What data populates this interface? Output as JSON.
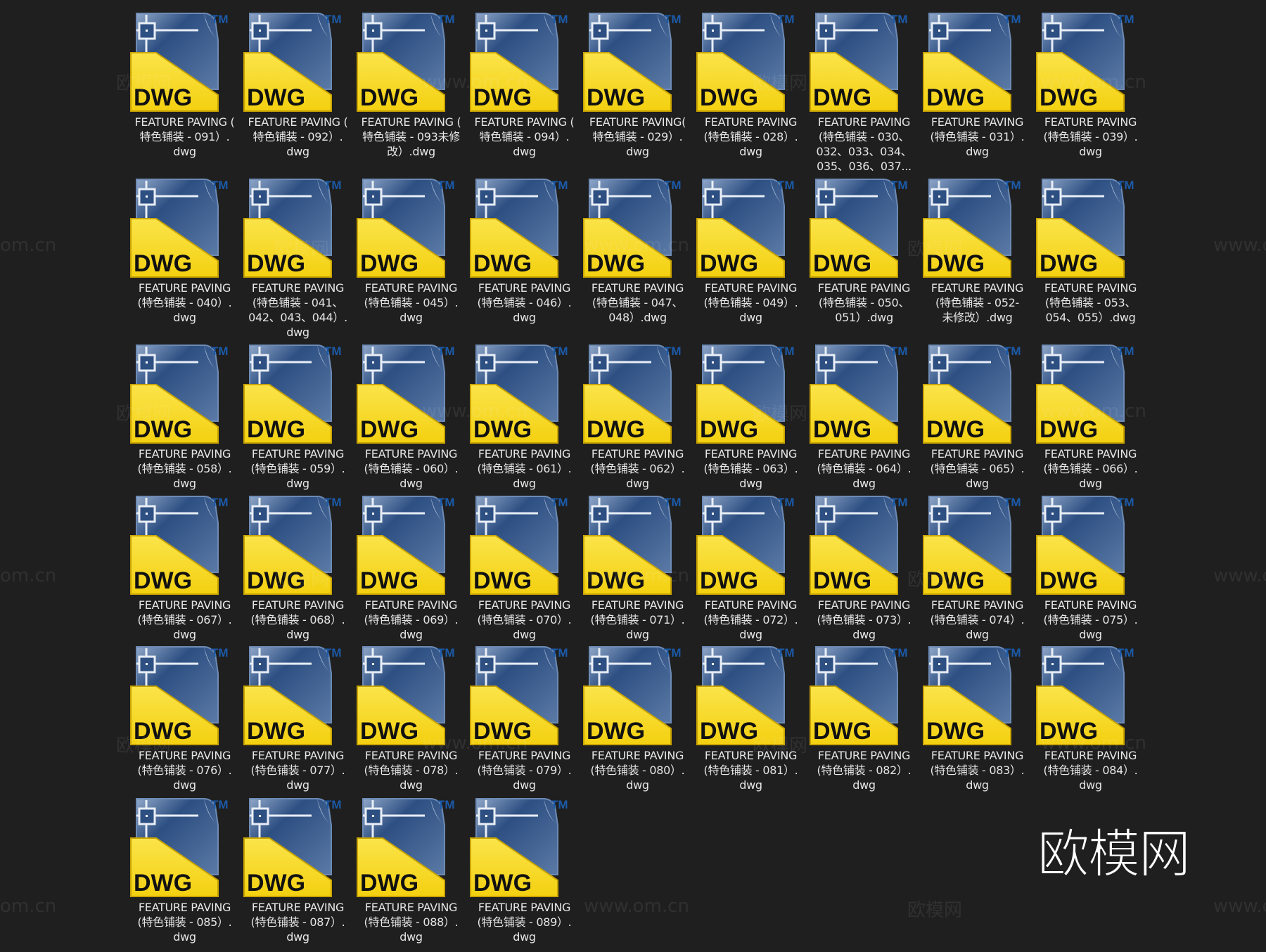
{
  "icon": {
    "type": "dwg-file-icon",
    "badge": "DWG",
    "trademark": "TM",
    "colors": {
      "blue": "#2d4f82",
      "yellow": "#f3d010",
      "tm": "#1b5aa8"
    }
  },
  "files": [
    {
      "name": "FEATURE PAVING (\n特色铺装 - 091）.\ndwg"
    },
    {
      "name": "FEATURE PAVING (\n特色铺装 - 092）.\ndwg"
    },
    {
      "name": "FEATURE PAVING (\n特色铺装 - 093未修\n改）.dwg"
    },
    {
      "name": "FEATURE PAVING (\n特色铺装 - 094）.\ndwg"
    },
    {
      "name": "FEATURE PAVING(\n特色铺装 - 029）.\ndwg"
    },
    {
      "name": "FEATURE PAVING\n(特色铺装 - 028）.\ndwg"
    },
    {
      "name": "FEATURE PAVING\n(特色铺装 - 030、\n032、033、034、\n035、036、037..."
    },
    {
      "name": "FEATURE PAVING\n(特色铺装 - 031）.\ndwg"
    },
    {
      "name": "FEATURE PAVING\n(特色铺装 - 039）.\ndwg"
    },
    {
      "name": "FEATURE PAVING\n(特色铺装 - 040）.\ndwg"
    },
    {
      "name": "FEATURE PAVING\n(特色铺装 - 041、\n042、043、044）.\ndwg"
    },
    {
      "name": "FEATURE PAVING\n(特色铺装 - 045）.\ndwg"
    },
    {
      "name": "FEATURE PAVING\n(特色铺装 - 046）.\ndwg"
    },
    {
      "name": "FEATURE PAVING\n(特色铺装 - 047、\n048）.dwg"
    },
    {
      "name": "FEATURE PAVING\n(特色铺装 - 049）.\ndwg"
    },
    {
      "name": "FEATURE PAVING\n(特色铺装 - 050、\n051）.dwg"
    },
    {
      "name": "FEATURE PAVING\n(特色铺装 - 052-\n未修改）.dwg"
    },
    {
      "name": "FEATURE PAVING\n(特色铺装 - 053、\n054、055）.dwg"
    },
    {
      "name": "FEATURE PAVING\n(特色铺装 - 058）.\ndwg"
    },
    {
      "name": "FEATURE PAVING\n(特色铺装 - 059）.\ndwg"
    },
    {
      "name": "FEATURE PAVING\n(特色铺装 - 060）.\ndwg"
    },
    {
      "name": "FEATURE PAVING\n(特色铺装 - 061）.\ndwg"
    },
    {
      "name": "FEATURE PAVING\n(特色铺装 - 062）.\ndwg"
    },
    {
      "name": "FEATURE PAVING\n(特色铺装 - 063）.\ndwg"
    },
    {
      "name": "FEATURE PAVING\n(特色铺装 - 064）.\ndwg"
    },
    {
      "name": "FEATURE PAVING\n(特色铺装 - 065）.\ndwg"
    },
    {
      "name": "FEATURE PAVING\n(特色铺装 - 066）.\ndwg"
    },
    {
      "name": "FEATURE PAVING\n(特色铺装 - 067）.\ndwg"
    },
    {
      "name": "FEATURE PAVING\n(特色铺装 - 068）.\ndwg"
    },
    {
      "name": "FEATURE PAVING\n(特色铺装 - 069）.\ndwg"
    },
    {
      "name": "FEATURE PAVING\n(特色铺装 - 070）.\ndwg"
    },
    {
      "name": "FEATURE PAVING\n(特色铺装 - 071）.\ndwg"
    },
    {
      "name": "FEATURE PAVING\n(特色铺装 - 072）.\ndwg"
    },
    {
      "name": "FEATURE PAVING\n(特色铺装 - 073）.\ndwg"
    },
    {
      "name": "FEATURE PAVING\n(特色铺装 - 074）.\ndwg"
    },
    {
      "name": "FEATURE PAVING\n(特色铺装 - 075）.\ndwg"
    },
    {
      "name": "FEATURE PAVING\n(特色铺装 - 076）.\ndwg"
    },
    {
      "name": "FEATURE PAVING\n(特色铺装 - 077）.\ndwg"
    },
    {
      "name": "FEATURE PAVING\n(特色铺装 - 078）.\ndwg"
    },
    {
      "name": "FEATURE PAVING\n(特色铺装 - 079）.\ndwg"
    },
    {
      "name": "FEATURE PAVING\n(特色铺装 - 080）.\ndwg"
    },
    {
      "name": "FEATURE PAVING\n(特色铺装 - 081）.\ndwg"
    },
    {
      "name": "FEATURE PAVING\n(特色铺装 - 082）.\ndwg"
    },
    {
      "name": "FEATURE PAVING\n(特色铺装 - 083）.\ndwg"
    },
    {
      "name": "FEATURE PAVING\n(特色铺装 - 084）.\ndwg"
    },
    {
      "name": "FEATURE PAVING\n(特色铺装 - 085）.\ndwg"
    },
    {
      "name": "FEATURE PAVING\n(特色铺装 - 087）.\ndwg"
    },
    {
      "name": "FEATURE PAVING\n(特色铺装 - 088）.\ndwg"
    },
    {
      "name": "FEATURE PAVING\n(特色铺装 - 089）.\ndwg"
    }
  ],
  "watermark": {
    "logo": "欧模网",
    "site": "www.om.cn",
    "site_short": "om.cn"
  }
}
